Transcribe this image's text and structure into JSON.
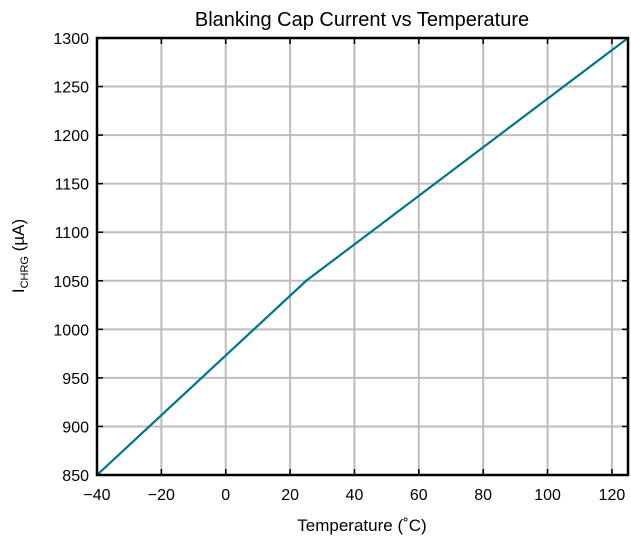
{
  "chart_data": {
    "type": "line",
    "title": "Blanking Cap Current vs Temperature",
    "xlabel": "Temperature (˚C)",
    "ylabel": {
      "main": "I",
      "subscript": "CHRG",
      "unit": " (µA)"
    },
    "xlim": [
      -40,
      125
    ],
    "ylim": [
      850,
      1300
    ],
    "xticks": [
      -40,
      -20,
      0,
      20,
      40,
      60,
      80,
      100,
      120
    ],
    "xtick_labels": [
      "−40",
      "−20",
      "0",
      "20",
      "40",
      "60",
      "80",
      "100",
      "120"
    ],
    "yticks": [
      850,
      900,
      950,
      1000,
      1050,
      1100,
      1150,
      1200,
      1250,
      1300
    ],
    "ytick_labels": [
      "850",
      "900",
      "950",
      "1000",
      "1050",
      "1100",
      "1150",
      "1200",
      "1250",
      "1300"
    ],
    "grid": true,
    "series": [
      {
        "x": [
          -40,
          25,
          125
        ],
        "y": [
          850,
          1050,
          1300
        ],
        "color": "#007589"
      }
    ]
  }
}
